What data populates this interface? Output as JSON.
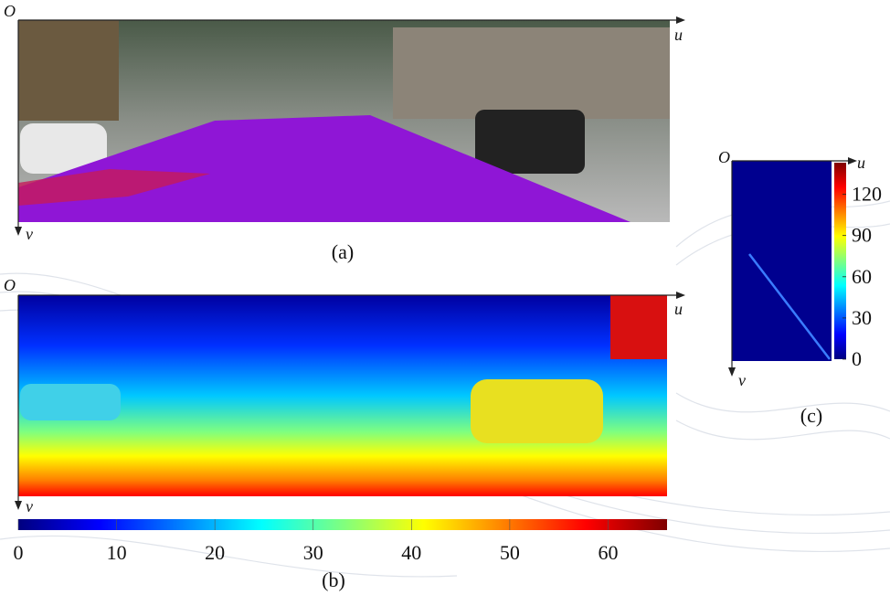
{
  "panel_a": {
    "caption": "(a)",
    "origin": "O",
    "x_axis": "u",
    "y_axis": "v"
  },
  "panel_b": {
    "caption": "(b)",
    "origin": "O",
    "x_axis": "u",
    "y_axis": "v",
    "colorbar": {
      "range": [
        0,
        66
      ],
      "ticks": [
        0,
        10,
        20,
        30,
        40,
        50,
        60
      ]
    }
  },
  "panel_c": {
    "caption": "(c)",
    "origin": "O",
    "x_axis": "u",
    "y_axis": "v",
    "colorbar": {
      "range": [
        0,
        143
      ],
      "ticks": [
        0,
        30,
        60,
        90,
        120
      ]
    }
  }
}
